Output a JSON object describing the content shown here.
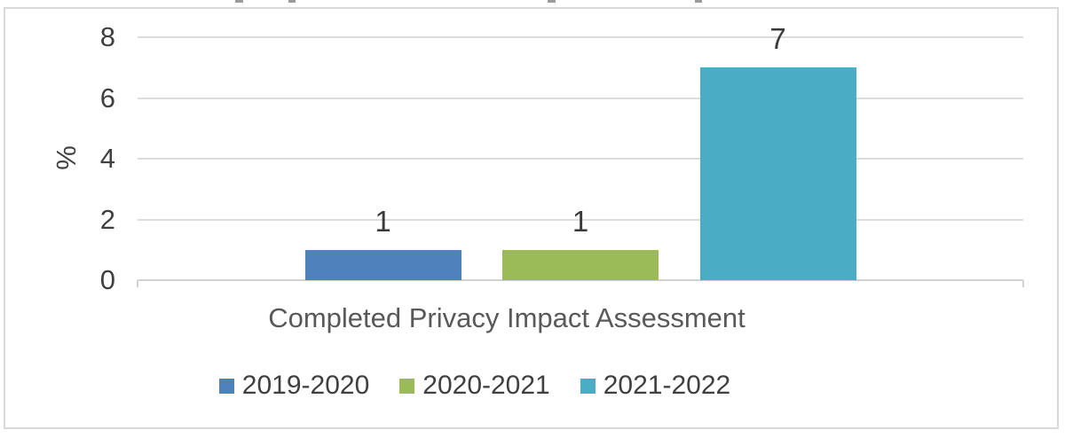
{
  "chart": {
    "background_color": "#FFFFFF",
    "frame_border_color": "#D9D9D9",
    "gridline_color": "#DCDCDC",
    "axis_text_color": "#404040",
    "axis_title_color": "#595959"
  },
  "chart_data": {
    "type": "bar",
    "title": "",
    "categories": [
      "Completed Privacy Impact Assessment"
    ],
    "series": [
      {
        "name": "2019-2020",
        "values": [
          1
        ],
        "color": "#4F81BD"
      },
      {
        "name": "2020-2021",
        "values": [
          1
        ],
        "color": "#9BBB59"
      },
      {
        "name": "2021-2022",
        "values": [
          7
        ],
        "color": "#4BACC6"
      }
    ],
    "data_labels": [
      1,
      1,
      7
    ],
    "xlabel": "Completed Privacy Impact Assessment",
    "ylabel": "%",
    "ylim": [
      0,
      8
    ],
    "yticks": [
      0,
      2,
      4,
      6,
      8
    ],
    "grid": true,
    "legend_position": "bottom"
  }
}
